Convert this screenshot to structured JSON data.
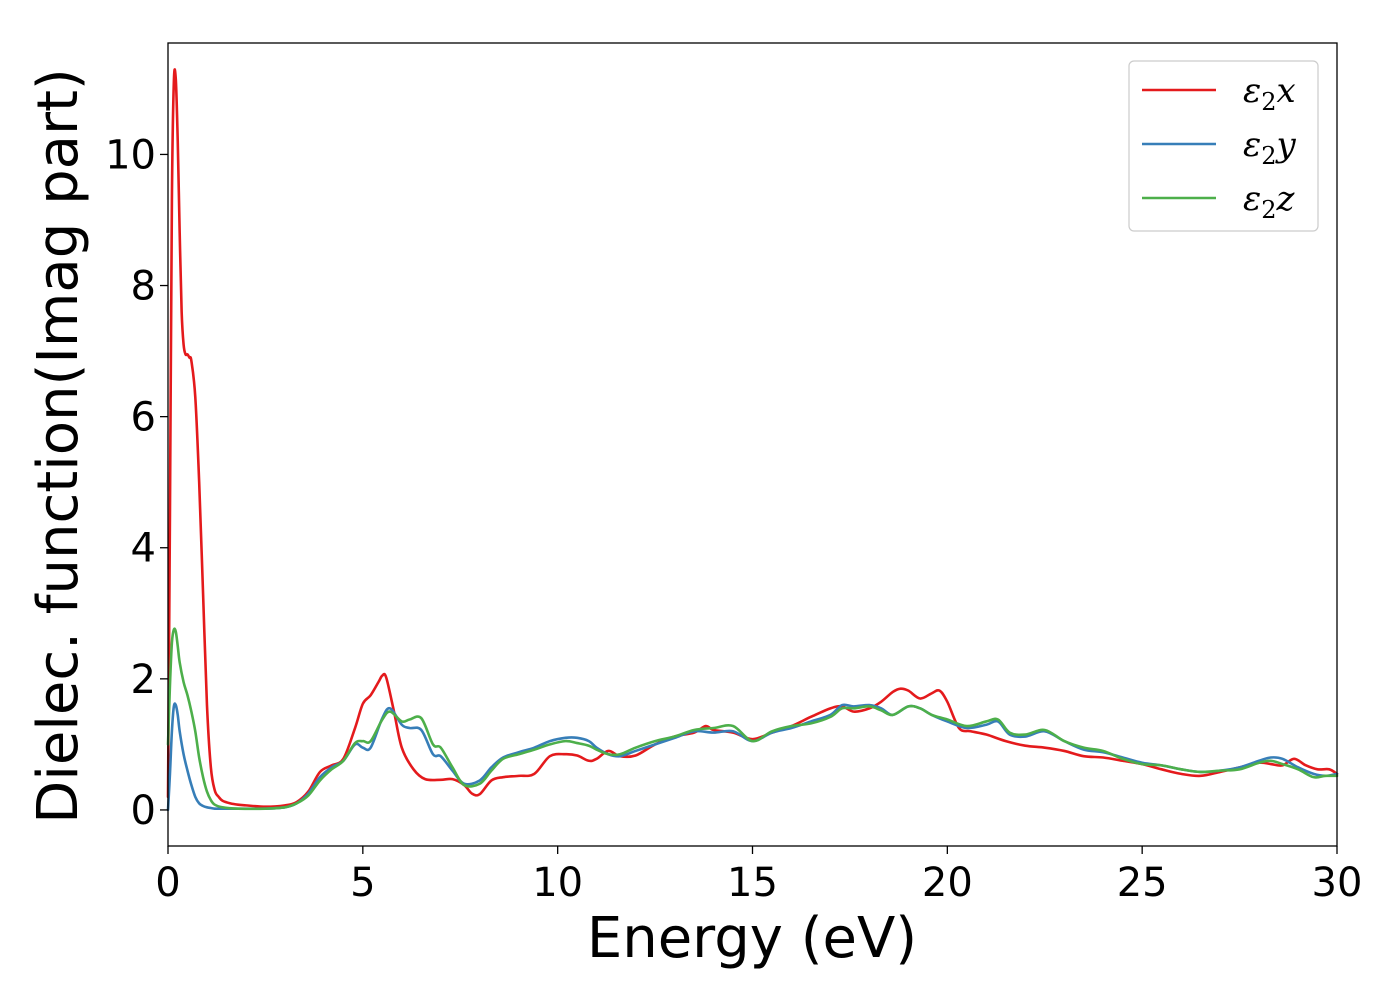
{
  "chart_data": {
    "type": "line",
    "xlabel": "Energy (eV)",
    "ylabel": "Dielec. function(Imag part)",
    "xlim": [
      0,
      30
    ],
    "ylim": [
      -0.55,
      11.7
    ],
    "xticks": [
      0,
      5,
      10,
      15,
      20,
      25,
      30
    ],
    "xtick_labels": [
      "0",
      "5",
      "10",
      "15",
      "20",
      "25",
      "30"
    ],
    "yticks": [
      0,
      2,
      4,
      6,
      8,
      10
    ],
    "ytick_labels": [
      "0",
      "2",
      "4",
      "6",
      "8",
      "10"
    ],
    "grid": false,
    "legend_position": "top-right",
    "series": [
      {
        "name": "ε₂x",
        "legend_base": "ε",
        "legend_sub": "2",
        "legend_suffix": "x",
        "color": "#e41a1c",
        "x": [
          0,
          0.05,
          0.1,
          0.15,
          0.2,
          0.25,
          0.3,
          0.35,
          0.4,
          0.45,
          0.5,
          0.55,
          0.6,
          0.7,
          0.8,
          0.9,
          1.0,
          1.1,
          1.2,
          1.3,
          1.4,
          1.6,
          1.8,
          2.0,
          2.5,
          3.0,
          3.3,
          3.6,
          3.9,
          4.2,
          4.5,
          4.8,
          5.0,
          5.2,
          5.4,
          5.5,
          5.6,
          5.8,
          6.0,
          6.3,
          6.6,
          7.0,
          7.3,
          7.6,
          7.8,
          8.0,
          8.3,
          8.6,
          9.0,
          9.4,
          9.8,
          10.2,
          10.5,
          10.8,
          11.0,
          11.3,
          11.6,
          12.0,
          12.5,
          13.0,
          13.5,
          13.8,
          14.0,
          14.5,
          15.0,
          15.5,
          16.0,
          16.5,
          17.0,
          17.3,
          17.6,
          18.0,
          18.3,
          18.6,
          18.8,
          19.0,
          19.3,
          19.6,
          19.8,
          20.0,
          20.3,
          20.6,
          21.0,
          21.5,
          22.0,
          22.5,
          23.0,
          23.5,
          24.0,
          24.5,
          25.0,
          25.5,
          26.0,
          26.5,
          27.0,
          27.5,
          28.0,
          28.3,
          28.6,
          28.9,
          29.2,
          29.5,
          29.8,
          30.0
        ],
        "values": [
          0.2,
          4.5,
          9.3,
          11.1,
          11.15,
          10.2,
          8.8,
          7.6,
          7.1,
          6.95,
          6.95,
          6.9,
          6.85,
          6.3,
          5.0,
          3.3,
          1.6,
          0.65,
          0.3,
          0.2,
          0.14,
          0.1,
          0.08,
          0.07,
          0.05,
          0.07,
          0.12,
          0.28,
          0.58,
          0.68,
          0.78,
          1.25,
          1.62,
          1.75,
          1.95,
          2.05,
          2.02,
          1.5,
          0.95,
          0.62,
          0.47,
          0.46,
          0.47,
          0.38,
          0.25,
          0.24,
          0.45,
          0.5,
          0.52,
          0.55,
          0.82,
          0.85,
          0.83,
          0.75,
          0.78,
          0.9,
          0.82,
          0.83,
          1.0,
          1.12,
          1.18,
          1.28,
          1.22,
          1.18,
          1.08,
          1.18,
          1.28,
          1.42,
          1.55,
          1.58,
          1.5,
          1.55,
          1.65,
          1.8,
          1.85,
          1.82,
          1.7,
          1.78,
          1.82,
          1.65,
          1.25,
          1.2,
          1.15,
          1.05,
          0.98,
          0.95,
          0.9,
          0.82,
          0.8,
          0.75,
          0.7,
          0.62,
          0.55,
          0.52,
          0.58,
          0.65,
          0.72,
          0.7,
          0.68,
          0.78,
          0.68,
          0.62,
          0.62,
          0.55
        ]
      },
      {
        "name": "ε₂y",
        "legend_base": "ε",
        "legend_sub": "2",
        "legend_suffix": "y",
        "color": "#377eb8",
        "x": [
          0,
          0.05,
          0.1,
          0.15,
          0.2,
          0.25,
          0.3,
          0.4,
          0.5,
          0.6,
          0.7,
          0.8,
          0.9,
          1.0,
          1.1,
          1.2,
          1.4,
          1.8,
          2.5,
          3.0,
          3.3,
          3.6,
          3.9,
          4.2,
          4.5,
          4.8,
          5.0,
          5.2,
          5.5,
          5.7,
          6.0,
          6.2,
          6.5,
          6.8,
          7.0,
          7.3,
          7.6,
          8.0,
          8.3,
          8.6,
          9.0,
          9.4,
          9.8,
          10.2,
          10.5,
          10.8,
          11.0,
          11.3,
          11.6,
          12.0,
          12.5,
          13.0,
          13.5,
          14.0,
          14.5,
          15.0,
          15.5,
          16.0,
          16.5,
          17.0,
          17.3,
          17.6,
          18.0,
          18.3,
          18.6,
          19.0,
          19.3,
          19.6,
          20.0,
          20.5,
          21.0,
          21.3,
          21.6,
          22.0,
          22.5,
          23.0,
          23.5,
          24.0,
          24.5,
          25.0,
          25.5,
          26.0,
          26.5,
          27.0,
          27.5,
          28.0,
          28.3,
          28.6,
          29.0,
          29.4,
          29.7,
          30.0
        ],
        "values": [
          0.0,
          0.55,
          1.2,
          1.58,
          1.6,
          1.45,
          1.2,
          0.85,
          0.6,
          0.38,
          0.2,
          0.1,
          0.06,
          0.04,
          0.03,
          0.02,
          0.02,
          0.02,
          0.02,
          0.04,
          0.1,
          0.25,
          0.5,
          0.65,
          0.75,
          1.0,
          0.95,
          0.95,
          1.4,
          1.55,
          1.3,
          1.25,
          1.22,
          0.85,
          0.82,
          0.6,
          0.4,
          0.45,
          0.65,
          0.8,
          0.88,
          0.95,
          1.05,
          1.1,
          1.1,
          1.05,
          0.95,
          0.85,
          0.82,
          0.9,
          1.0,
          1.1,
          1.2,
          1.18,
          1.2,
          1.05,
          1.18,
          1.25,
          1.35,
          1.45,
          1.6,
          1.58,
          1.6,
          1.55,
          1.45,
          1.58,
          1.55,
          1.45,
          1.35,
          1.25,
          1.3,
          1.35,
          1.15,
          1.12,
          1.2,
          1.05,
          0.92,
          0.88,
          0.8,
          0.72,
          0.68,
          0.62,
          0.58,
          0.6,
          0.65,
          0.75,
          0.8,
          0.78,
          0.65,
          0.55,
          0.52,
          0.55
        ]
      },
      {
        "name": "ε₂z",
        "legend_base": "ε",
        "legend_sub": "2",
        "legend_suffix": "z",
        "color": "#4daf4a",
        "x": [
          0,
          0.05,
          0.1,
          0.15,
          0.2,
          0.25,
          0.3,
          0.4,
          0.5,
          0.6,
          0.7,
          0.8,
          0.9,
          1.0,
          1.1,
          1.2,
          1.4,
          1.8,
          2.5,
          3.0,
          3.3,
          3.6,
          3.9,
          4.2,
          4.5,
          4.8,
          5.0,
          5.2,
          5.5,
          5.7,
          6.0,
          6.2,
          6.5,
          6.8,
          7.0,
          7.3,
          7.6,
          8.0,
          8.3,
          8.6,
          9.0,
          9.4,
          9.8,
          10.2,
          10.5,
          10.8,
          11.0,
          11.3,
          11.6,
          12.0,
          12.5,
          13.0,
          13.5,
          14.0,
          14.5,
          15.0,
          15.5,
          16.0,
          16.5,
          17.0,
          17.3,
          17.6,
          18.0,
          18.3,
          18.6,
          19.0,
          19.3,
          19.6,
          20.0,
          20.5,
          21.0,
          21.3,
          21.6,
          22.0,
          22.5,
          23.0,
          23.5,
          24.0,
          24.5,
          25.0,
          25.5,
          26.0,
          26.5,
          27.0,
          27.5,
          28.0,
          28.3,
          28.6,
          29.0,
          29.4,
          29.7,
          30.0
        ],
        "values": [
          1.0,
          1.9,
          2.55,
          2.75,
          2.72,
          2.5,
          2.25,
          1.95,
          1.75,
          1.5,
          1.2,
          0.8,
          0.5,
          0.28,
          0.15,
          0.08,
          0.04,
          0.02,
          0.02,
          0.04,
          0.1,
          0.22,
          0.45,
          0.62,
          0.75,
          1.02,
          1.05,
          1.05,
          1.38,
          1.5,
          1.35,
          1.38,
          1.4,
          1.0,
          0.95,
          0.65,
          0.38,
          0.4,
          0.6,
          0.78,
          0.85,
          0.92,
          1.0,
          1.05,
          1.02,
          0.98,
          0.92,
          0.85,
          0.85,
          0.95,
          1.05,
          1.12,
          1.22,
          1.25,
          1.28,
          1.05,
          1.2,
          1.28,
          1.32,
          1.42,
          1.55,
          1.55,
          1.58,
          1.52,
          1.45,
          1.58,
          1.55,
          1.45,
          1.38,
          1.28,
          1.35,
          1.38,
          1.18,
          1.15,
          1.22,
          1.05,
          0.95,
          0.9,
          0.78,
          0.7,
          0.68,
          0.62,
          0.58,
          0.6,
          0.62,
          0.72,
          0.75,
          0.7,
          0.62,
          0.5,
          0.52,
          0.52
        ]
      }
    ]
  }
}
